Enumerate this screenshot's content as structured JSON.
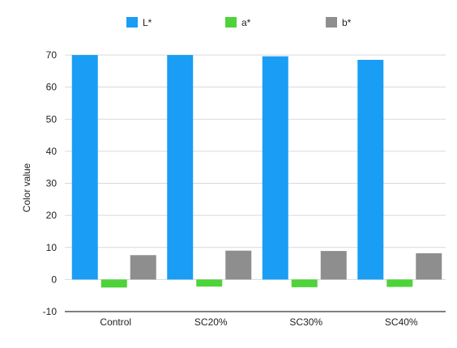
{
  "chart_data": {
    "type": "bar",
    "title": "",
    "xlabel": "",
    "ylabel": "Color value",
    "categories": [
      "Control",
      "SC20%",
      "SC30%",
      "SC40%"
    ],
    "series": [
      {
        "name": "L*",
        "color": "#1a9df5",
        "values": [
          70.0,
          70.0,
          69.6,
          68.5
        ]
      },
      {
        "name": "a*",
        "color": "#4fd33a",
        "values": [
          -2.5,
          -2.2,
          -2.4,
          -2.3
        ]
      },
      {
        "name": "b*",
        "color": "#8e8e8e",
        "values": [
          7.6,
          9.0,
          8.9,
          8.2
        ]
      }
    ],
    "ylim": [
      -10,
      70
    ],
    "yticks": [
      -10,
      0,
      10,
      20,
      30,
      40,
      50,
      60,
      70
    ],
    "grid": true,
    "legend_position": "top"
  }
}
